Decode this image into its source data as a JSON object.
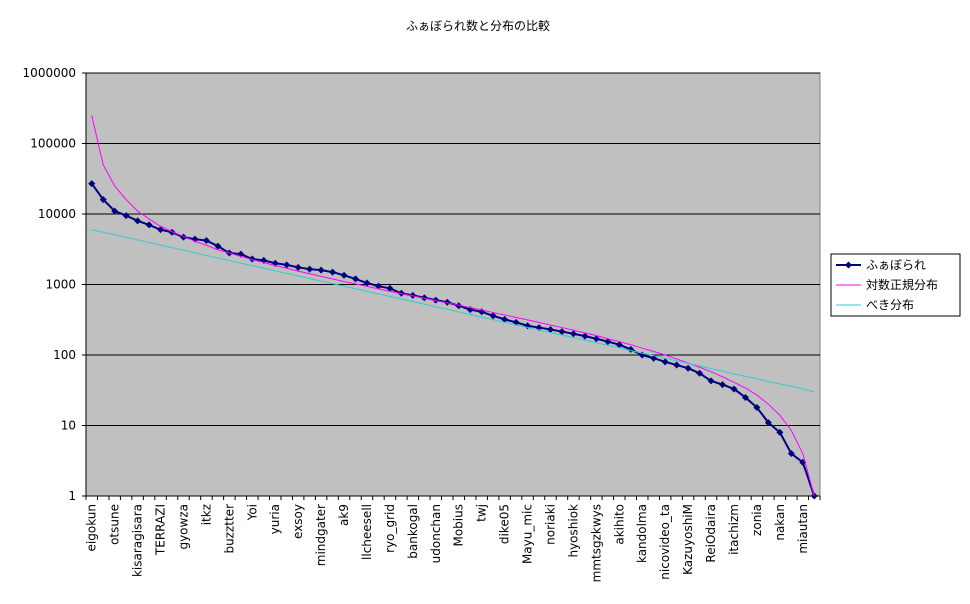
{
  "chart_data": {
    "type": "line",
    "title": "ふぁぼられ数と分布の比較",
    "categories": [
      "eigokun",
      null,
      "otsune",
      null,
      "kisaragisara",
      null,
      "TERRAZI",
      null,
      "gyowza",
      null,
      "itkz",
      null,
      "buzztter",
      null,
      "Yoi",
      null,
      "yuria",
      null,
      "exsoy",
      null,
      "mindgater",
      null,
      "ak9",
      null,
      "llcheesell",
      null,
      "ryo_grid",
      null,
      "bankogal",
      null,
      "udonchan",
      null,
      "Mobius",
      null,
      "twj",
      null,
      "dike05",
      null,
      "Mayu_mic",
      null,
      "noriaki",
      null,
      "hyoshiok",
      null,
      "mmtsgzkwys",
      null,
      "akihito",
      null,
      "kandolma",
      null,
      "nicovideo_ta",
      null,
      "KazuyoshiM",
      null,
      "ReiOdaira",
      null,
      "itachizm",
      null,
      "zonia",
      null,
      "nakan",
      null,
      "miautan",
      null
    ],
    "series": [
      {
        "name": "ふぁぼられ",
        "color": "#000080",
        "marker": true,
        "values": [
          27000,
          16000,
          11000,
          9500,
          8000,
          7000,
          6000,
          5500,
          4700,
          4400,
          4200,
          3500,
          2800,
          2700,
          2300,
          2200,
          2000,
          1900,
          1750,
          1650,
          1600,
          1500,
          1350,
          1200,
          1050,
          950,
          880,
          750,
          700,
          650,
          600,
          560,
          500,
          440,
          410,
          360,
          320,
          290,
          260,
          245,
          230,
          215,
          200,
          185,
          170,
          155,
          140,
          120,
          100,
          90,
          80,
          72,
          65,
          55,
          43,
          38,
          33,
          25,
          18,
          11,
          8,
          4,
          3,
          1
        ]
      },
      {
        "name": "対数正規分布",
        "color": "#ff00ff",
        "marker": false,
        "values": [
          250000,
          50000,
          25000,
          16000,
          11000,
          8500,
          6700,
          5600,
          4800,
          4100,
          3600,
          3100,
          2800,
          2500,
          2250,
          2050,
          1850,
          1700,
          1550,
          1420,
          1300,
          1200,
          1100,
          1020,
          940,
          870,
          800,
          740,
          690,
          640,
          590,
          550,
          510,
          470,
          435,
          400,
          370,
          340,
          315,
          290,
          265,
          245,
          225,
          205,
          188,
          170,
          155,
          140,
          125,
          112,
          100,
          88,
          77,
          67,
          58,
          49,
          41,
          34,
          27,
          20,
          14,
          8.5,
          4,
          1
        ]
      },
      {
        "name": "べき分布",
        "color": "#33cccc",
        "marker": false,
        "values": [
          6000,
          5516,
          5072,
          4663,
          4287,
          3942,
          3624,
          3332,
          3063,
          2816,
          2589,
          2381,
          2189,
          2012,
          1850,
          1701,
          1564,
          1438,
          1322,
          1216,
          1118,
          1028,
          945,
          869,
          799,
          734,
          675,
          621,
          571,
          525,
          483,
          444,
          408,
          375,
          345,
          317,
          292,
          268,
          246,
          227,
          208,
          192,
          176,
          162,
          149,
          137,
          126,
          116,
          106,
          98,
          90,
          83,
          76,
          70,
          64,
          59,
          54,
          50,
          46,
          42,
          39,
          36,
          33,
          30
        ]
      }
    ],
    "ylim": [
      1,
      1000000
    ],
    "yticks": [
      1,
      10,
      100,
      1000,
      10000,
      100000,
      1000000
    ],
    "log_y": true,
    "grid": true,
    "legend": "right",
    "plot_background": "#c0c0c0"
  }
}
